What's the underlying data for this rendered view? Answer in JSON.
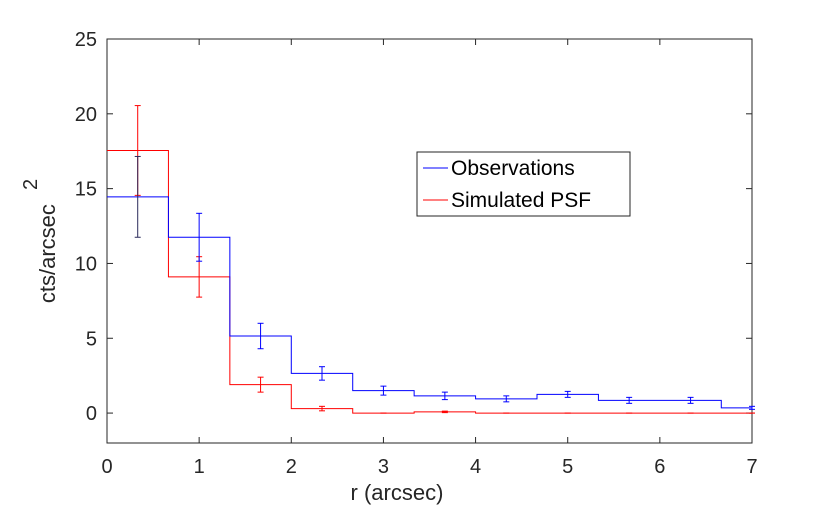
{
  "chart_data": {
    "type": "line",
    "subtype": "stairs-with-errorbars",
    "title": "",
    "xlabel": "r (arcsec)",
    "ylabel": "cts/arcsec",
    "ylabel_superscript": "2",
    "xlim": [
      0,
      7
    ],
    "ylim": [
      -2,
      25
    ],
    "xticks": [
      0,
      1,
      2,
      3,
      4,
      5,
      6,
      7
    ],
    "yticks": [
      0,
      5,
      10,
      15,
      20,
      25
    ],
    "grid": false,
    "legend_position": "upper-right",
    "bin_edges": [
      0,
      0.6667,
      1.3333,
      2.0,
      2.6667,
      3.3333,
      4.0,
      4.6667,
      5.3333,
      6.0,
      6.6667,
      7.0
    ],
    "series": [
      {
        "name": "Observations",
        "color": "#0000ff",
        "errorbar_color": "#0000ff",
        "errorbar_color_first": "#2a2a5a",
        "x": [
          0.3333,
          1.0,
          1.6667,
          2.3333,
          3.0,
          3.6667,
          4.3333,
          5.0,
          5.6667,
          6.3333,
          7.0
        ],
        "values": [
          14.45,
          11.75,
          5.15,
          2.65,
          1.5,
          1.15,
          0.95,
          1.25,
          0.85,
          0.85,
          0.35
        ],
        "errors": [
          2.7,
          1.6,
          0.85,
          0.45,
          0.3,
          0.25,
          0.2,
          0.2,
          0.2,
          0.2,
          0.1
        ]
      },
      {
        "name": "Simulated PSF",
        "color": "#ff0000",
        "errorbar_color": "#ff0000",
        "x": [
          0.3333,
          1.0,
          1.6667,
          2.3333,
          3.0,
          3.6667,
          4.3333,
          5.0,
          5.6667,
          6.3333,
          7.0
        ],
        "values": [
          17.55,
          9.1,
          1.9,
          0.3,
          0.0,
          0.08,
          0.0,
          0.0,
          0.0,
          0.0,
          0.0
        ],
        "errors": [
          3.0,
          1.35,
          0.5,
          0.15,
          0.0,
          0.05,
          0.0,
          0.0,
          0.0,
          0.0,
          0.0
        ]
      }
    ]
  }
}
